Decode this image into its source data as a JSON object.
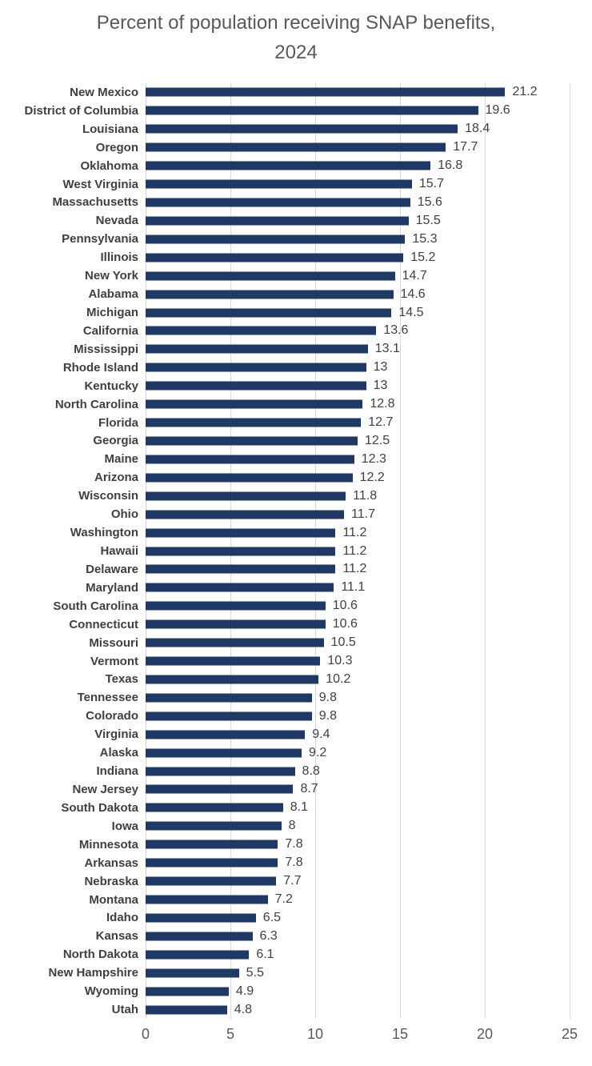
{
  "title": {
    "line1": "Percent of population receiving SNAP benefits,",
    "line2": "2024"
  },
  "chart_data": {
    "type": "bar",
    "orientation": "horizontal",
    "title": "Percent of population receiving SNAP benefits, 2024",
    "categories": [
      "New Mexico",
      "District of Columbia",
      "Louisiana",
      "Oregon",
      "Oklahoma",
      "West Virginia",
      "Massachusetts",
      "Nevada",
      "Pennsylvania",
      "Illinois",
      "New York",
      "Alabama",
      "Michigan",
      "California",
      "Mississippi",
      "Rhode Island",
      "Kentucky",
      "North Carolina",
      "Florida",
      "Georgia",
      "Maine",
      "Arizona",
      "Wisconsin",
      "Ohio",
      "Washington",
      "Hawaii",
      "Delaware",
      "Maryland",
      "South Carolina",
      "Connecticut",
      "Missouri",
      "Vermont",
      "Texas",
      "Tennessee",
      "Colorado",
      "Virginia",
      "Alaska",
      "Indiana",
      "New Jersey",
      "South Dakota",
      "Iowa",
      "Minnesota",
      "Arkansas",
      "Nebraska",
      "Montana",
      "Idaho",
      "Kansas",
      "North Dakota",
      "New Hampshire",
      "Wyoming",
      "Utah"
    ],
    "values": [
      21.2,
      19.6,
      18.4,
      17.7,
      16.8,
      15.7,
      15.6,
      15.5,
      15.3,
      15.2,
      14.7,
      14.6,
      14.5,
      13.6,
      13.1,
      13,
      13,
      12.8,
      12.7,
      12.5,
      12.3,
      12.2,
      11.8,
      11.7,
      11.2,
      11.2,
      11.2,
      11.1,
      10.6,
      10.6,
      10.5,
      10.3,
      10.2,
      9.8,
      9.8,
      9.4,
      9.2,
      8.8,
      8.7,
      8.1,
      8,
      7.8,
      7.8,
      7.7,
      7.2,
      6.5,
      6.3,
      6.1,
      5.5,
      4.9,
      4.8
    ],
    "xlabel": "",
    "ylabel": "",
    "xlim": [
      0,
      25
    ],
    "x_ticks": [
      0,
      5,
      10,
      15,
      20,
      25
    ],
    "grid": "vertical gridlines at x ticks",
    "legend": "none",
    "value_labels": "at end of each bar",
    "colors": {
      "bar": "#1f3864",
      "gridline": "#d9d9d9",
      "title_text": "#595959",
      "tick_text": "#595959",
      "category_text": "#404040",
      "value_text": "#404040"
    }
  }
}
